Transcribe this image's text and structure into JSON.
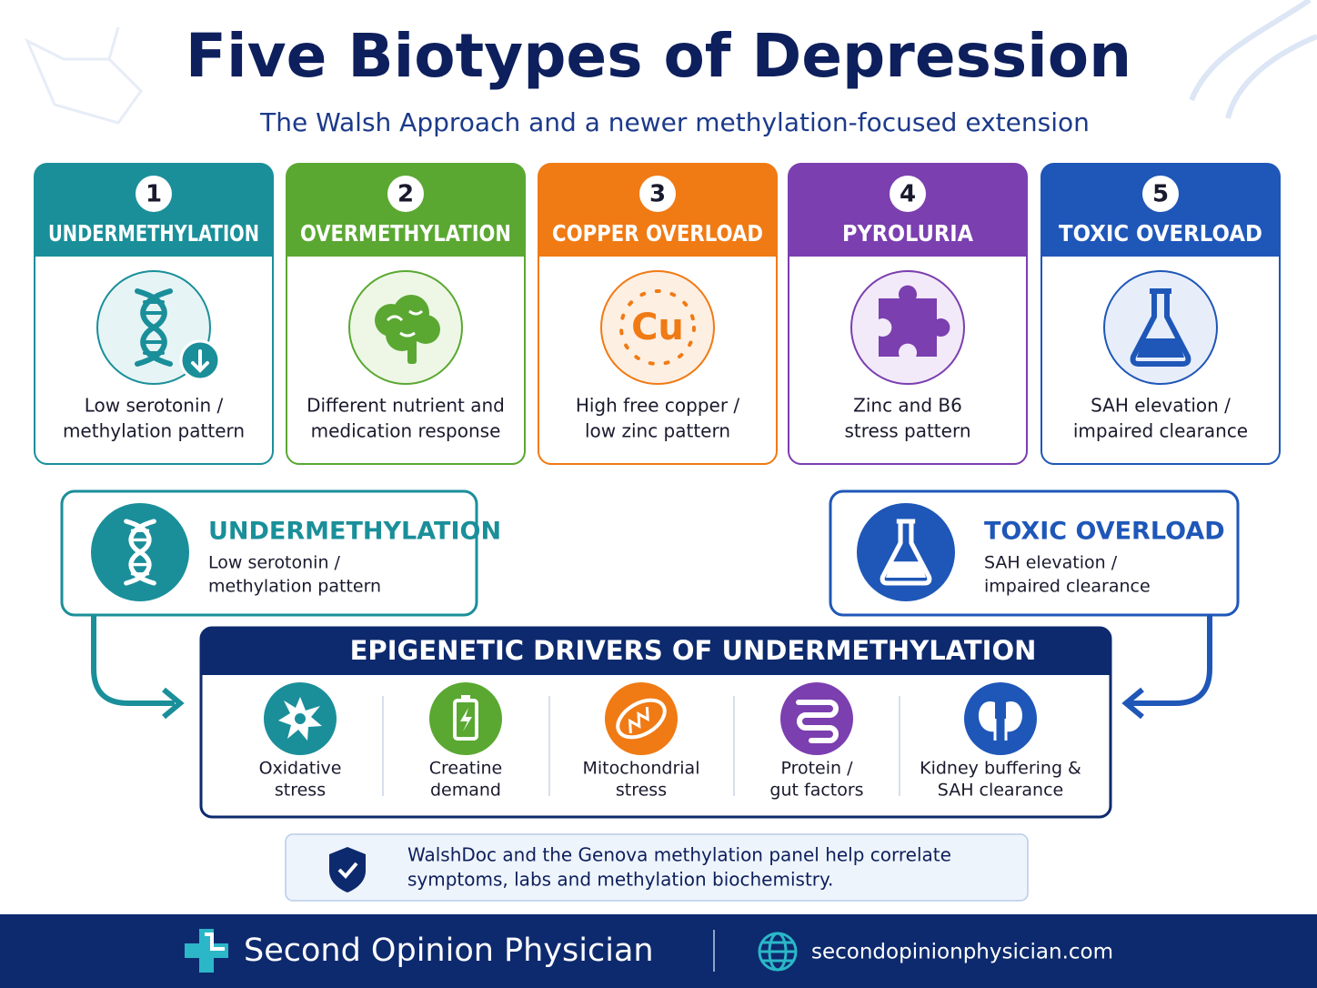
{
  "header": {
    "title": "Five Biotypes of Depression",
    "subtitle": "The Walsh Approach and a newer methylation-focused extension"
  },
  "biotypes": [
    {
      "number": "1",
      "name": "UNDERMETHYLATION",
      "description_lines": [
        "Low serotonin /",
        "methylation pattern"
      ]
    },
    {
      "number": "2",
      "name": "OVERMETHYLATION",
      "description_lines": [
        "Different nutrient and",
        "medication response"
      ]
    },
    {
      "number": "3",
      "name": "COPPER OVERLOAD",
      "icon_text": "Cu",
      "description_lines": [
        "High free copper /",
        "low zinc pattern"
      ]
    },
    {
      "number": "4",
      "name": "PYROLURIA",
      "description_lines": [
        "Zinc and B6",
        "stress pattern"
      ]
    },
    {
      "number": "5",
      "name": "TOXIC OVERLOAD",
      "description_lines": [
        "SAH elevation /",
        "impaired clearance"
      ]
    }
  ],
  "highlights": [
    {
      "name": "UNDERMETHYLATION",
      "description_lines": [
        "Low serotonin /",
        "methylation pattern"
      ]
    },
    {
      "name": "TOXIC OVERLOAD",
      "description_lines": [
        "SAH elevation /",
        "impaired clearance"
      ]
    }
  ],
  "drivers": {
    "title": "EPIGENETIC DRIVERS OF UNDERMETHYLATION",
    "items": [
      {
        "lines": [
          "Oxidative",
          "stress"
        ]
      },
      {
        "lines": [
          "Creatine",
          "demand"
        ]
      },
      {
        "lines": [
          "Mitochondrial",
          "stress"
        ]
      },
      {
        "lines": [
          "Protein /",
          "gut factors"
        ]
      },
      {
        "lines": [
          "Kidney buffering &",
          "SAH clearance"
        ]
      }
    ]
  },
  "note": {
    "lines": [
      "WalshDoc and the Genova methylation panel help correlate",
      "symptoms, labs and methylation biochemistry."
    ]
  },
  "footer": {
    "brand": "Second Opinion Physician",
    "url": "secondopinionphysician.com"
  }
}
